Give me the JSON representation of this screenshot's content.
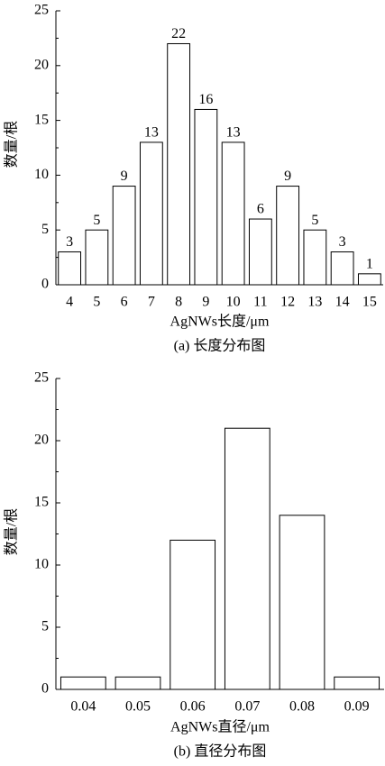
{
  "chart_data": [
    {
      "type": "bar",
      "categories": [
        "4",
        "5",
        "6",
        "7",
        "8",
        "9",
        "10",
        "11",
        "12",
        "13",
        "14",
        "15"
      ],
      "values": [
        3,
        5,
        9,
        13,
        22,
        16,
        13,
        6,
        9,
        5,
        3,
        1
      ],
      "color": "#ffffff",
      "ylim": [
        0,
        25
      ],
      "yticks": [
        0,
        5,
        10,
        15,
        20,
        25
      ],
      "ylabel": "数量/根",
      "xlabel": "AgNWs长度/μm",
      "caption": "(a) 长度分布图",
      "data_labels": true
    },
    {
      "type": "bar",
      "categories": [
        "0.04",
        "0.05",
        "0.06",
        "0.07",
        "0.08",
        "0.09"
      ],
      "values": [
        1,
        1,
        12,
        21,
        14,
        1
      ],
      "color": "#ffffff",
      "ylim": [
        0,
        25
      ],
      "yticks": [
        0,
        5,
        10,
        15,
        20,
        25
      ],
      "ylabel": "数量/根",
      "xlabel": "AgNWs直径/μm",
      "caption": "(b) 直径分布图",
      "data_labels": false
    }
  ]
}
